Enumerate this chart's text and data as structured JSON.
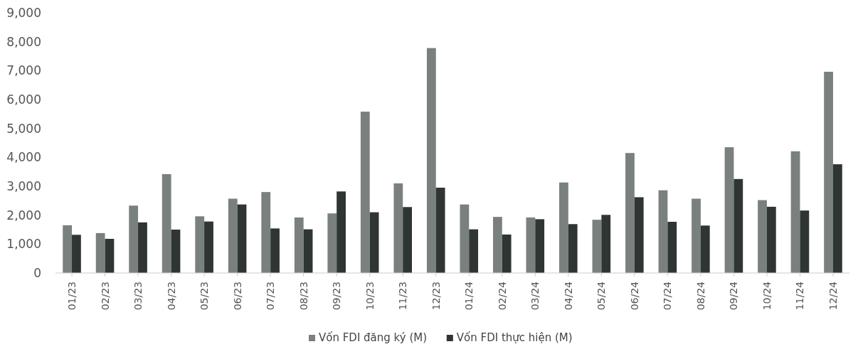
{
  "chart_data": {
    "type": "bar",
    "categories": [
      "01/23",
      "02/23",
      "03/23",
      "04/23",
      "05/23",
      "06/23",
      "07/23",
      "08/23",
      "09/23",
      "10/23",
      "11/23",
      "12/23",
      "01/24",
      "02/24",
      "03/24",
      "04/24",
      "05/24",
      "06/24",
      "07/24",
      "08/24",
      "09/24",
      "10/24",
      "11/24",
      "12/24"
    ],
    "series": [
      {
        "name": "Vốn FDI đăng ký (M)",
        "color": "#7a807e",
        "values": [
          1650,
          1380,
          2330,
          3420,
          1960,
          2570,
          2800,
          1920,
          2060,
          5580,
          3100,
          7780,
          2370,
          1940,
          1920,
          3130,
          1840,
          4150,
          2860,
          2570,
          4350,
          2520,
          4210,
          6960
        ]
      },
      {
        "name": "Vốn FDI thực hiện (M)",
        "color": "#2f3533",
        "values": [
          1320,
          1180,
          1750,
          1500,
          1780,
          2370,
          1540,
          1510,
          2820,
          2100,
          2280,
          2950,
          1510,
          1330,
          1860,
          1690,
          2010,
          2620,
          1770,
          1640,
          3250,
          2290,
          2160,
          3760
        ]
      }
    ],
    "ylim": [
      0,
      9000
    ],
    "yticks": [
      {
        "value": 0,
        "label": "0"
      },
      {
        "value": 1000,
        "label": "1,000"
      },
      {
        "value": 2000,
        "label": "2,000"
      },
      {
        "value": 3000,
        "label": "3,000"
      },
      {
        "value": 4000,
        "label": "4,000"
      },
      {
        "value": 5000,
        "label": "5,000"
      },
      {
        "value": 6000,
        "label": "6,000"
      },
      {
        "value": 7000,
        "label": "7,000"
      },
      {
        "value": 8000,
        "label": "8,000"
      },
      {
        "value": 9000,
        "label": "9,000"
      }
    ],
    "legend": "bottom"
  }
}
